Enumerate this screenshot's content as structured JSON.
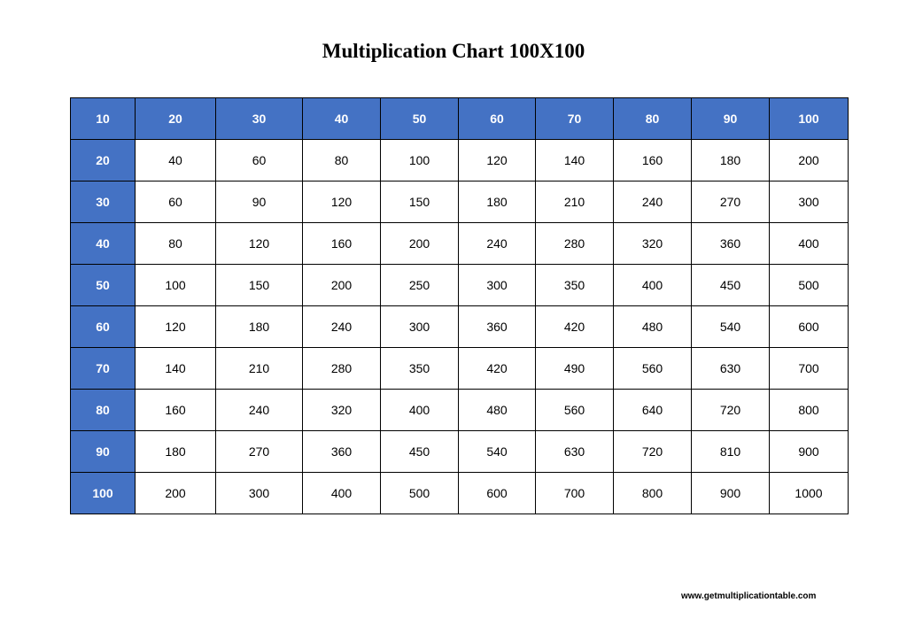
{
  "title": "Multiplication Chart 100X100",
  "footer": "www.getmultiplicationtable.com",
  "colors": {
    "header_fill": "#4472c4",
    "header_text": "#ffffff",
    "grid_line": "#000000"
  },
  "chart_data": {
    "type": "table",
    "title": "Multiplication Chart 100X100",
    "rows": [
      [
        "10",
        "20",
        "30",
        "40",
        "50",
        "60",
        "70",
        "80",
        "90",
        "100"
      ],
      [
        "20",
        "40",
        "60",
        "80",
        "100",
        "120",
        "140",
        "160",
        "180",
        "200"
      ],
      [
        "30",
        "60",
        "90",
        "120",
        "150",
        "180",
        "210",
        "240",
        "270",
        "300"
      ],
      [
        "40",
        "80",
        "120",
        "160",
        "200",
        "240",
        "280",
        "320",
        "360",
        "400"
      ],
      [
        "50",
        "100",
        "150",
        "200",
        "250",
        "300",
        "350",
        "400",
        "450",
        "500"
      ],
      [
        "60",
        "120",
        "180",
        "240",
        "300",
        "360",
        "420",
        "480",
        "540",
        "600"
      ],
      [
        "70",
        "140",
        "210",
        "280",
        "350",
        "420",
        "490",
        "560",
        "630",
        "700"
      ],
      [
        "80",
        "160",
        "240",
        "320",
        "400",
        "480",
        "560",
        "640",
        "720",
        "800"
      ],
      [
        "90",
        "180",
        "270",
        "360",
        "450",
        "540",
        "630",
        "720",
        "810",
        "900"
      ],
      [
        "100",
        "200",
        "300",
        "400",
        "500",
        "600",
        "700",
        "800",
        "900",
        "1000"
      ]
    ]
  }
}
